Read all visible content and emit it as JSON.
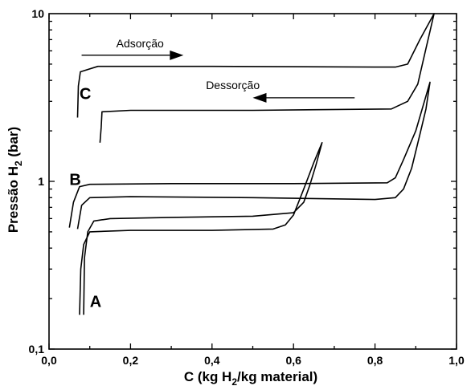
{
  "chart_data": {
    "type": "line",
    "xlabel": {
      "pre": "C (kg H",
      "sub": "2",
      "post": "/kg material)"
    },
    "ylabel": {
      "pre": "Pressão H",
      "sub": "2",
      "post": " (bar)"
    },
    "xlim": [
      0.0,
      1.0
    ],
    "ylim": [
      0.1,
      10
    ],
    "yscale": "log",
    "grid": false,
    "x_ticks": [
      {
        "v": 0.0,
        "label": "0,0"
      },
      {
        "v": 0.2,
        "label": "0,2"
      },
      {
        "v": 0.4,
        "label": "0,4"
      },
      {
        "v": 0.6,
        "label": "0,6"
      },
      {
        "v": 0.8,
        "label": "0,8"
      },
      {
        "v": 1.0,
        "label": "1,0"
      }
    ],
    "y_ticks": [
      {
        "v": 0.1,
        "label": "0,1"
      },
      {
        "v": 1,
        "label": "1"
      },
      {
        "v": 10,
        "label": "10"
      }
    ],
    "series": [
      {
        "name": "A",
        "points": [
          [
            0.075,
            0.16
          ],
          [
            0.078,
            0.3
          ],
          [
            0.085,
            0.42
          ],
          [
            0.1,
            0.5
          ],
          [
            0.2,
            0.51
          ],
          [
            0.4,
            0.51
          ],
          [
            0.55,
            0.52
          ],
          [
            0.58,
            0.55
          ],
          [
            0.6,
            0.63
          ],
          [
            0.625,
            0.9
          ],
          [
            0.65,
            1.3
          ],
          [
            0.67,
            1.7
          ],
          [
            0.655,
            1.25
          ],
          [
            0.64,
            0.95
          ],
          [
            0.625,
            0.75
          ],
          [
            0.6,
            0.65
          ],
          [
            0.5,
            0.62
          ],
          [
            0.3,
            0.61
          ],
          [
            0.15,
            0.6
          ],
          [
            0.11,
            0.58
          ],
          [
            0.095,
            0.5
          ],
          [
            0.087,
            0.35
          ],
          [
            0.085,
            0.16
          ]
        ]
      },
      {
        "name": "B",
        "points": [
          [
            0.05,
            0.53
          ],
          [
            0.06,
            0.75
          ],
          [
            0.075,
            0.93
          ],
          [
            0.1,
            0.96
          ],
          [
            0.3,
            0.97
          ],
          [
            0.6,
            0.97
          ],
          [
            0.83,
            0.98
          ],
          [
            0.85,
            1.05
          ],
          [
            0.87,
            1.35
          ],
          [
            0.9,
            2.0
          ],
          [
            0.935,
            3.9
          ],
          [
            0.925,
            2.7
          ],
          [
            0.91,
            1.9
          ],
          [
            0.89,
            1.2
          ],
          [
            0.87,
            0.9
          ],
          [
            0.85,
            0.8
          ],
          [
            0.8,
            0.78
          ],
          [
            0.5,
            0.8
          ],
          [
            0.2,
            0.81
          ],
          [
            0.1,
            0.8
          ],
          [
            0.08,
            0.72
          ],
          [
            0.07,
            0.52
          ]
        ]
      },
      {
        "name": "C",
        "points": [
          [
            0.07,
            2.4
          ],
          [
            0.072,
            3.7
          ],
          [
            0.077,
            4.5
          ],
          [
            0.12,
            4.85
          ],
          [
            0.4,
            4.85
          ],
          [
            0.8,
            4.8
          ],
          [
            0.85,
            4.8
          ],
          [
            0.88,
            5.0
          ],
          [
            0.91,
            7.0
          ],
          [
            0.945,
            10
          ],
          [
            0.925,
            6.2
          ],
          [
            0.905,
            3.8
          ],
          [
            0.88,
            3.0
          ],
          [
            0.84,
            2.7
          ],
          [
            0.5,
            2.65
          ],
          [
            0.2,
            2.65
          ],
          [
            0.13,
            2.6
          ],
          [
            0.128,
            2.1
          ],
          [
            0.125,
            1.7
          ]
        ]
      }
    ],
    "labels": [
      {
        "text": "A",
        "x": 0.1,
        "y": 0.178
      },
      {
        "text": "B",
        "x": 0.05,
        "y": 0.95
      },
      {
        "text": "C",
        "x": 0.075,
        "y": 3.1
      }
    ],
    "annotations": [
      {
        "text": "Adsorção",
        "text_x": 0.165,
        "text_y": 6.3,
        "from": [
          0.08,
          5.65
        ],
        "to": [
          0.33,
          5.65
        ]
      },
      {
        "text": "Dessorção",
        "text_x": 0.385,
        "text_y": 3.55,
        "from": [
          0.75,
          3.15
        ],
        "to": [
          0.5,
          3.15
        ]
      }
    ]
  }
}
